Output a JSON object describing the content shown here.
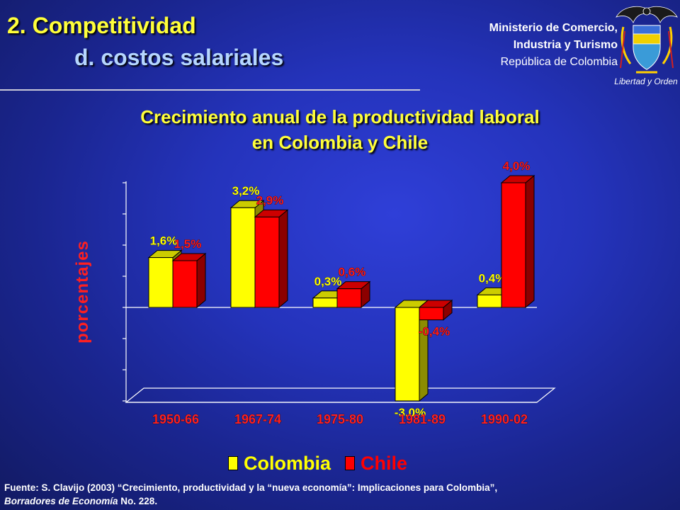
{
  "header": {
    "title": "2. Competitividad",
    "subtitle": "d. costos salariales"
  },
  "ministry": {
    "line1": "Ministerio de Comercio,",
    "line2": "Industria y Turismo",
    "line3": "República de Colombia",
    "motto": "Libertad y Orden"
  },
  "colors": {
    "colombia": "#ffff00",
    "chile": "#ff0000",
    "title": "#ffff3a",
    "subtitle": "#b5d6ff"
  },
  "chart_data": {
    "type": "bar",
    "title": "Crecimiento anual de la productividad laboral",
    "subtitle": "en Colombia y Chile",
    "ylabel": "porcentajes",
    "xlabel": "",
    "categories": [
      "1950-66",
      "1967-74",
      "1975-80",
      "1981-89",
      "1990-02"
    ],
    "series": [
      {
        "name": "Colombia",
        "values": [
          1.6,
          3.2,
          0.3,
          -3.0,
          0.4
        ],
        "labels": [
          "1,6%",
          "3,2%",
          "0,3%",
          "-3,0%",
          "0,4%"
        ]
      },
      {
        "name": "Chile",
        "values": [
          1.5,
          2.9,
          0.6,
          -0.4,
          4.0
        ],
        "labels": [
          "1,5%",
          "2,9%",
          "0,6%",
          "-0,4%",
          "4,0%"
        ]
      }
    ],
    "ylim": [
      -3,
      4
    ],
    "legend_position": "bottom",
    "grid": false
  },
  "source": {
    "line1": "Fuente: S. Clavijo (2003) “Crecimiento, productividad y la “nueva economía”: Implicaciones para Colombia”,",
    "line2_italic": "Borradores de Economía",
    "line2_rest": " No. 228."
  }
}
